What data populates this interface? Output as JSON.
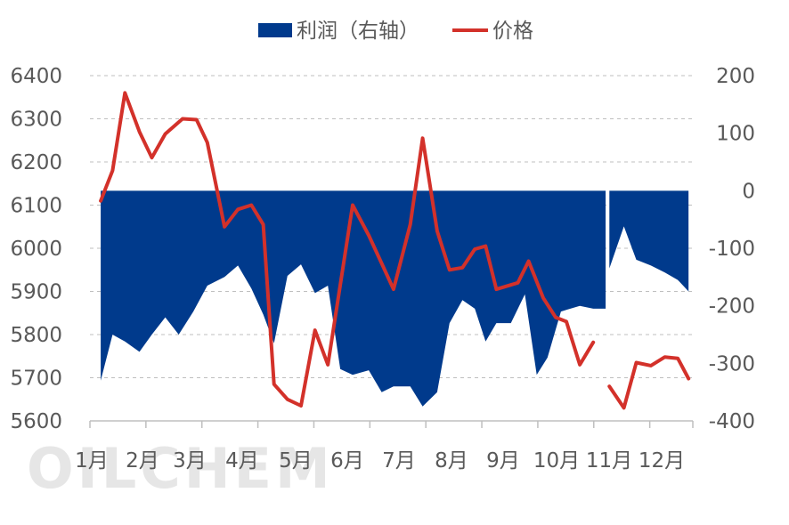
{
  "watermark": "OILCHEM",
  "chart_data": {
    "type": "area+line",
    "legend": [
      "利润（右轴）",
      "价格"
    ],
    "colors": {
      "profit": "#003A8C",
      "price": "#D3312A"
    },
    "grid": true,
    "legend_position": "top-center",
    "x_categories": [
      "1月",
      "2月",
      "3月",
      "4月",
      "5月",
      "6月",
      "7月",
      "8月",
      "9月",
      "10月",
      "11月",
      "12月"
    ],
    "left_axis": {
      "ticks": [
        "5600",
        "5700",
        "5800",
        "5900",
        "6000",
        "6100",
        "6200",
        "6300",
        "6400"
      ],
      "ylim": [
        5600,
        6400
      ]
    },
    "right_axis": {
      "ticks": [
        "-400",
        "-300",
        "-200",
        "-100",
        "0",
        "100",
        "200"
      ],
      "ylim": [
        -400,
        200
      ]
    },
    "x_range_months": [
      0.8,
      12.0
    ],
    "series": [
      {
        "name": "价格",
        "axis": "left",
        "points": [
          [
            1.0,
            6110
          ],
          [
            1.22,
            6180
          ],
          [
            1.45,
            6360
          ],
          [
            1.72,
            6270
          ],
          [
            1.95,
            6210
          ],
          [
            2.2,
            6265
          ],
          [
            2.52,
            6300
          ],
          [
            2.78,
            6298
          ],
          [
            2.98,
            6245
          ],
          [
            3.3,
            6050
          ],
          [
            3.55,
            6090
          ],
          [
            3.8,
            6100
          ],
          [
            4.02,
            6055
          ],
          [
            4.22,
            5685
          ],
          [
            4.47,
            5650
          ],
          [
            4.72,
            5635
          ],
          [
            4.98,
            5810
          ],
          [
            5.22,
            5730
          ],
          [
            5.68,
            6100
          ],
          [
            5.98,
            6030
          ],
          [
            6.22,
            5965
          ],
          [
            6.44,
            5905
          ],
          [
            6.75,
            6055
          ],
          [
            6.98,
            6255
          ],
          [
            7.25,
            6040
          ],
          [
            7.48,
            5950
          ],
          [
            7.72,
            5955
          ],
          [
            7.95,
            5998
          ],
          [
            8.15,
            6005
          ],
          [
            8.35,
            5905
          ],
          [
            8.75,
            5920
          ],
          [
            8.95,
            5970
          ],
          [
            9.22,
            5885
          ],
          [
            9.45,
            5840
          ],
          [
            9.65,
            5830
          ],
          [
            9.9,
            5730
          ],
          [
            10.15,
            5782
          ],
          null,
          [
            10.45,
            5680
          ],
          [
            10.72,
            5630
          ],
          [
            10.95,
            5735
          ],
          [
            11.22,
            5728
          ],
          [
            11.48,
            5748
          ],
          [
            11.72,
            5745
          ],
          [
            11.92,
            5698
          ]
        ]
      },
      {
        "name": "利润（右轴）",
        "axis": "right",
        "points": [
          [
            1.0,
            -330
          ],
          [
            1.22,
            -250
          ],
          [
            1.45,
            -262
          ],
          [
            1.72,
            -280
          ],
          [
            1.95,
            -250
          ],
          [
            2.2,
            -220
          ],
          [
            2.45,
            -250
          ],
          [
            2.72,
            -210
          ],
          [
            2.98,
            -165
          ],
          [
            3.3,
            -150
          ],
          [
            3.55,
            -130
          ],
          [
            3.8,
            -170
          ],
          [
            4.02,
            -215
          ],
          [
            4.22,
            -265
          ],
          [
            4.47,
            -148
          ],
          [
            4.72,
            -128
          ],
          [
            4.98,
            -178
          ],
          [
            5.22,
            -165
          ],
          [
            5.45,
            -310
          ],
          [
            5.68,
            -320
          ],
          [
            5.98,
            -312
          ],
          [
            6.22,
            -350
          ],
          [
            6.44,
            -340
          ],
          [
            6.75,
            -340
          ],
          [
            6.98,
            -375
          ],
          [
            7.25,
            -350
          ],
          [
            7.48,
            -230
          ],
          [
            7.72,
            -190
          ],
          [
            7.95,
            -205
          ],
          [
            8.15,
            -262
          ],
          [
            8.35,
            -230
          ],
          [
            8.62,
            -230
          ],
          [
            8.88,
            -180
          ],
          [
            9.1,
            -320
          ],
          [
            9.3,
            -290
          ],
          [
            9.55,
            -210
          ],
          [
            9.9,
            -200
          ],
          [
            10.15,
            -205
          ],
          [
            10.38,
            -205
          ],
          null,
          [
            10.45,
            -135
          ],
          [
            10.72,
            -62
          ],
          [
            10.95,
            -120
          ],
          [
            11.22,
            -130
          ],
          [
            11.48,
            -142
          ],
          [
            11.72,
            -155
          ],
          [
            11.92,
            -175
          ]
        ]
      }
    ]
  }
}
